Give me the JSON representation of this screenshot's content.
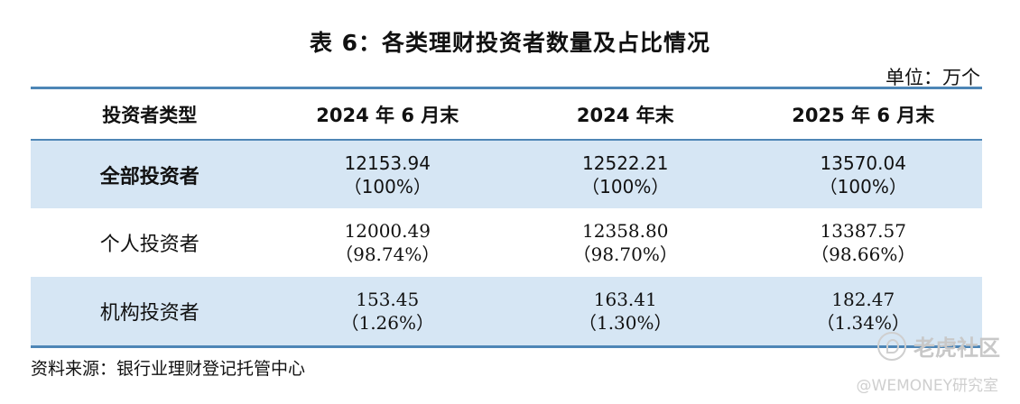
{
  "title": "表 6：各类理财投资者数量及占比情况",
  "unit": "单位：万个",
  "table": {
    "headers": [
      "投资者类型",
      "2024 年 6 月末",
      "2024 年末",
      "2025 年 6 月末"
    ],
    "rows": [
      {
        "type": "全部投资者",
        "values": [
          "12153.94",
          "12522.21",
          "13570.04"
        ],
        "shares": [
          "（100%）",
          "（100%）",
          "（100%）"
        ]
      },
      {
        "type": "个人投资者",
        "values": [
          "12000.49",
          "12358.80",
          "13387.57"
        ],
        "shares": [
          "（98.74%）",
          "（98.70%）",
          "（98.66%）"
        ]
      },
      {
        "type": "机构投资者",
        "values": [
          "153.45",
          "163.41",
          "182.47"
        ],
        "shares": [
          "（1.26%）",
          "（1.30%）",
          "（1.34%）"
        ]
      }
    ]
  },
  "source": "资料来源：银行业理财登记托管中心",
  "watermark": {
    "brand": "老虎社区",
    "handle": "@WEMONEY研究室"
  },
  "colors": {
    "rule": "#4e86b6",
    "row_shade": "#d6e6f4"
  }
}
